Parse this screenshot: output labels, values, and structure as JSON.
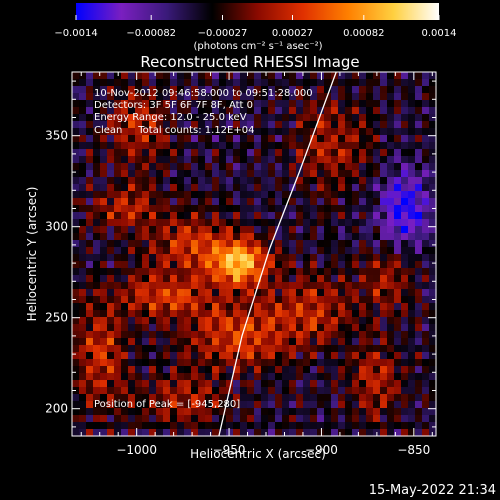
{
  "chart_data": {
    "type": "heatmap",
    "title": "Reconstructed RHESSI Image",
    "xlabel": "Heliocentric X (arcsec)",
    "ylabel": "Heliocentric Y (arcsec)",
    "xlim": [
      -1035,
      -838
    ],
    "ylim": [
      185,
      385
    ],
    "xticks": [
      -1000,
      -950,
      -900,
      -850
    ],
    "xtick_labels": [
      "−1000",
      "−950",
      "−900",
      "−850"
    ],
    "yticks": [
      200,
      250,
      300,
      350
    ],
    "ytick_labels": [
      "200",
      "250",
      "300",
      "350"
    ],
    "colorbar": {
      "range": [
        -0.0014,
        0.0014
      ],
      "ticks": [
        -0.0014,
        -0.00082,
        -0.00027,
        0.00027,
        0.00082,
        0.0014
      ],
      "tick_labels": [
        "−0.0014",
        "−0.00082",
        "−0.00027",
        "0.00027",
        "0.00082",
        "0.0014"
      ],
      "units_label": "(photons cm⁻² s⁻¹ asec⁻²)",
      "colormap": [
        "#0000ff",
        "#7a1fc0",
        "#3a1a7a",
        "#000000",
        "#8a0a00",
        "#e03000",
        "#ff8000",
        "#ffd040",
        "#ffffff"
      ]
    },
    "info_lines": [
      "10-Nov-2012 09:46:58.000 to 09:51:28.000",
      "Detectors: 3F 5F 6F 7F 8F, Att 0",
      "Energy Range: 12.0 - 25.0 keV",
      "Clean     Total counts: 1.12E+04"
    ],
    "peak_text": "Position of Peak = [-945,280]",
    "peak": {
      "x": -945,
      "y": 280
    },
    "limb_curve": [
      {
        "x": -955.5,
        "y": 185
      },
      {
        "x": -943,
        "y": 240
      },
      {
        "x": -928,
        "y": 288
      },
      {
        "x": -912,
        "y": 330
      },
      {
        "x": -892,
        "y": 385
      }
    ],
    "source_blobs": [
      {
        "x": -944,
        "y": 280,
        "sx": 11,
        "sy": 9,
        "amp": 0.0014
      },
      {
        "x": -970,
        "y": 290,
        "sx": 16,
        "sy": 11,
        "amp": 0.0007
      },
      {
        "x": -985,
        "y": 262,
        "sx": 18,
        "sy": 9,
        "amp": 0.00075
      },
      {
        "x": -945,
        "y": 240,
        "sx": 20,
        "sy": 12,
        "amp": 0.0008
      },
      {
        "x": -1005,
        "y": 310,
        "sx": 14,
        "sy": 9,
        "amp": 0.0006
      },
      {
        "x": -1000,
        "y": 355,
        "sx": 12,
        "sy": 16,
        "amp": 0.0006
      },
      {
        "x": -1020,
        "y": 230,
        "sx": 10,
        "sy": 20,
        "amp": 0.0007
      },
      {
        "x": -905,
        "y": 255,
        "sx": 16,
        "sy": 14,
        "amp": 0.0006
      },
      {
        "x": -895,
        "y": 345,
        "sx": 14,
        "sy": 18,
        "amp": 0.00055
      },
      {
        "x": -865,
        "y": 270,
        "sx": 10,
        "sy": 12,
        "amp": 0.0005
      },
      {
        "x": -870,
        "y": 215,
        "sx": 10,
        "sy": 14,
        "amp": 0.0006
      },
      {
        "x": -975,
        "y": 205,
        "sx": 18,
        "sy": 10,
        "amp": 0.0005
      },
      {
        "x": -855,
        "y": 310,
        "sx": 10,
        "sy": 14,
        "amp": -0.0009
      }
    ]
  },
  "footer": {
    "timestamp": "15-May-2022 21:34"
  }
}
